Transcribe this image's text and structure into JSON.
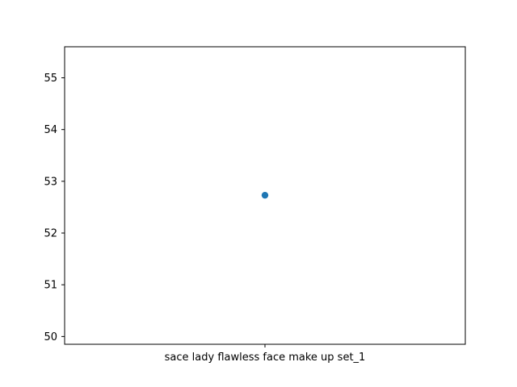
{
  "chart_data": {
    "type": "scatter",
    "title": "",
    "xlabel": "",
    "ylabel": "",
    "categories": [
      "sace lady flawless face make up set_1"
    ],
    "values": [
      52.73
    ],
    "yticks": [
      50,
      51,
      52,
      53,
      54,
      55
    ],
    "ylim": [
      49.85,
      55.6
    ],
    "grid": false,
    "legend": "none",
    "marker_color": "#1f77b4"
  }
}
